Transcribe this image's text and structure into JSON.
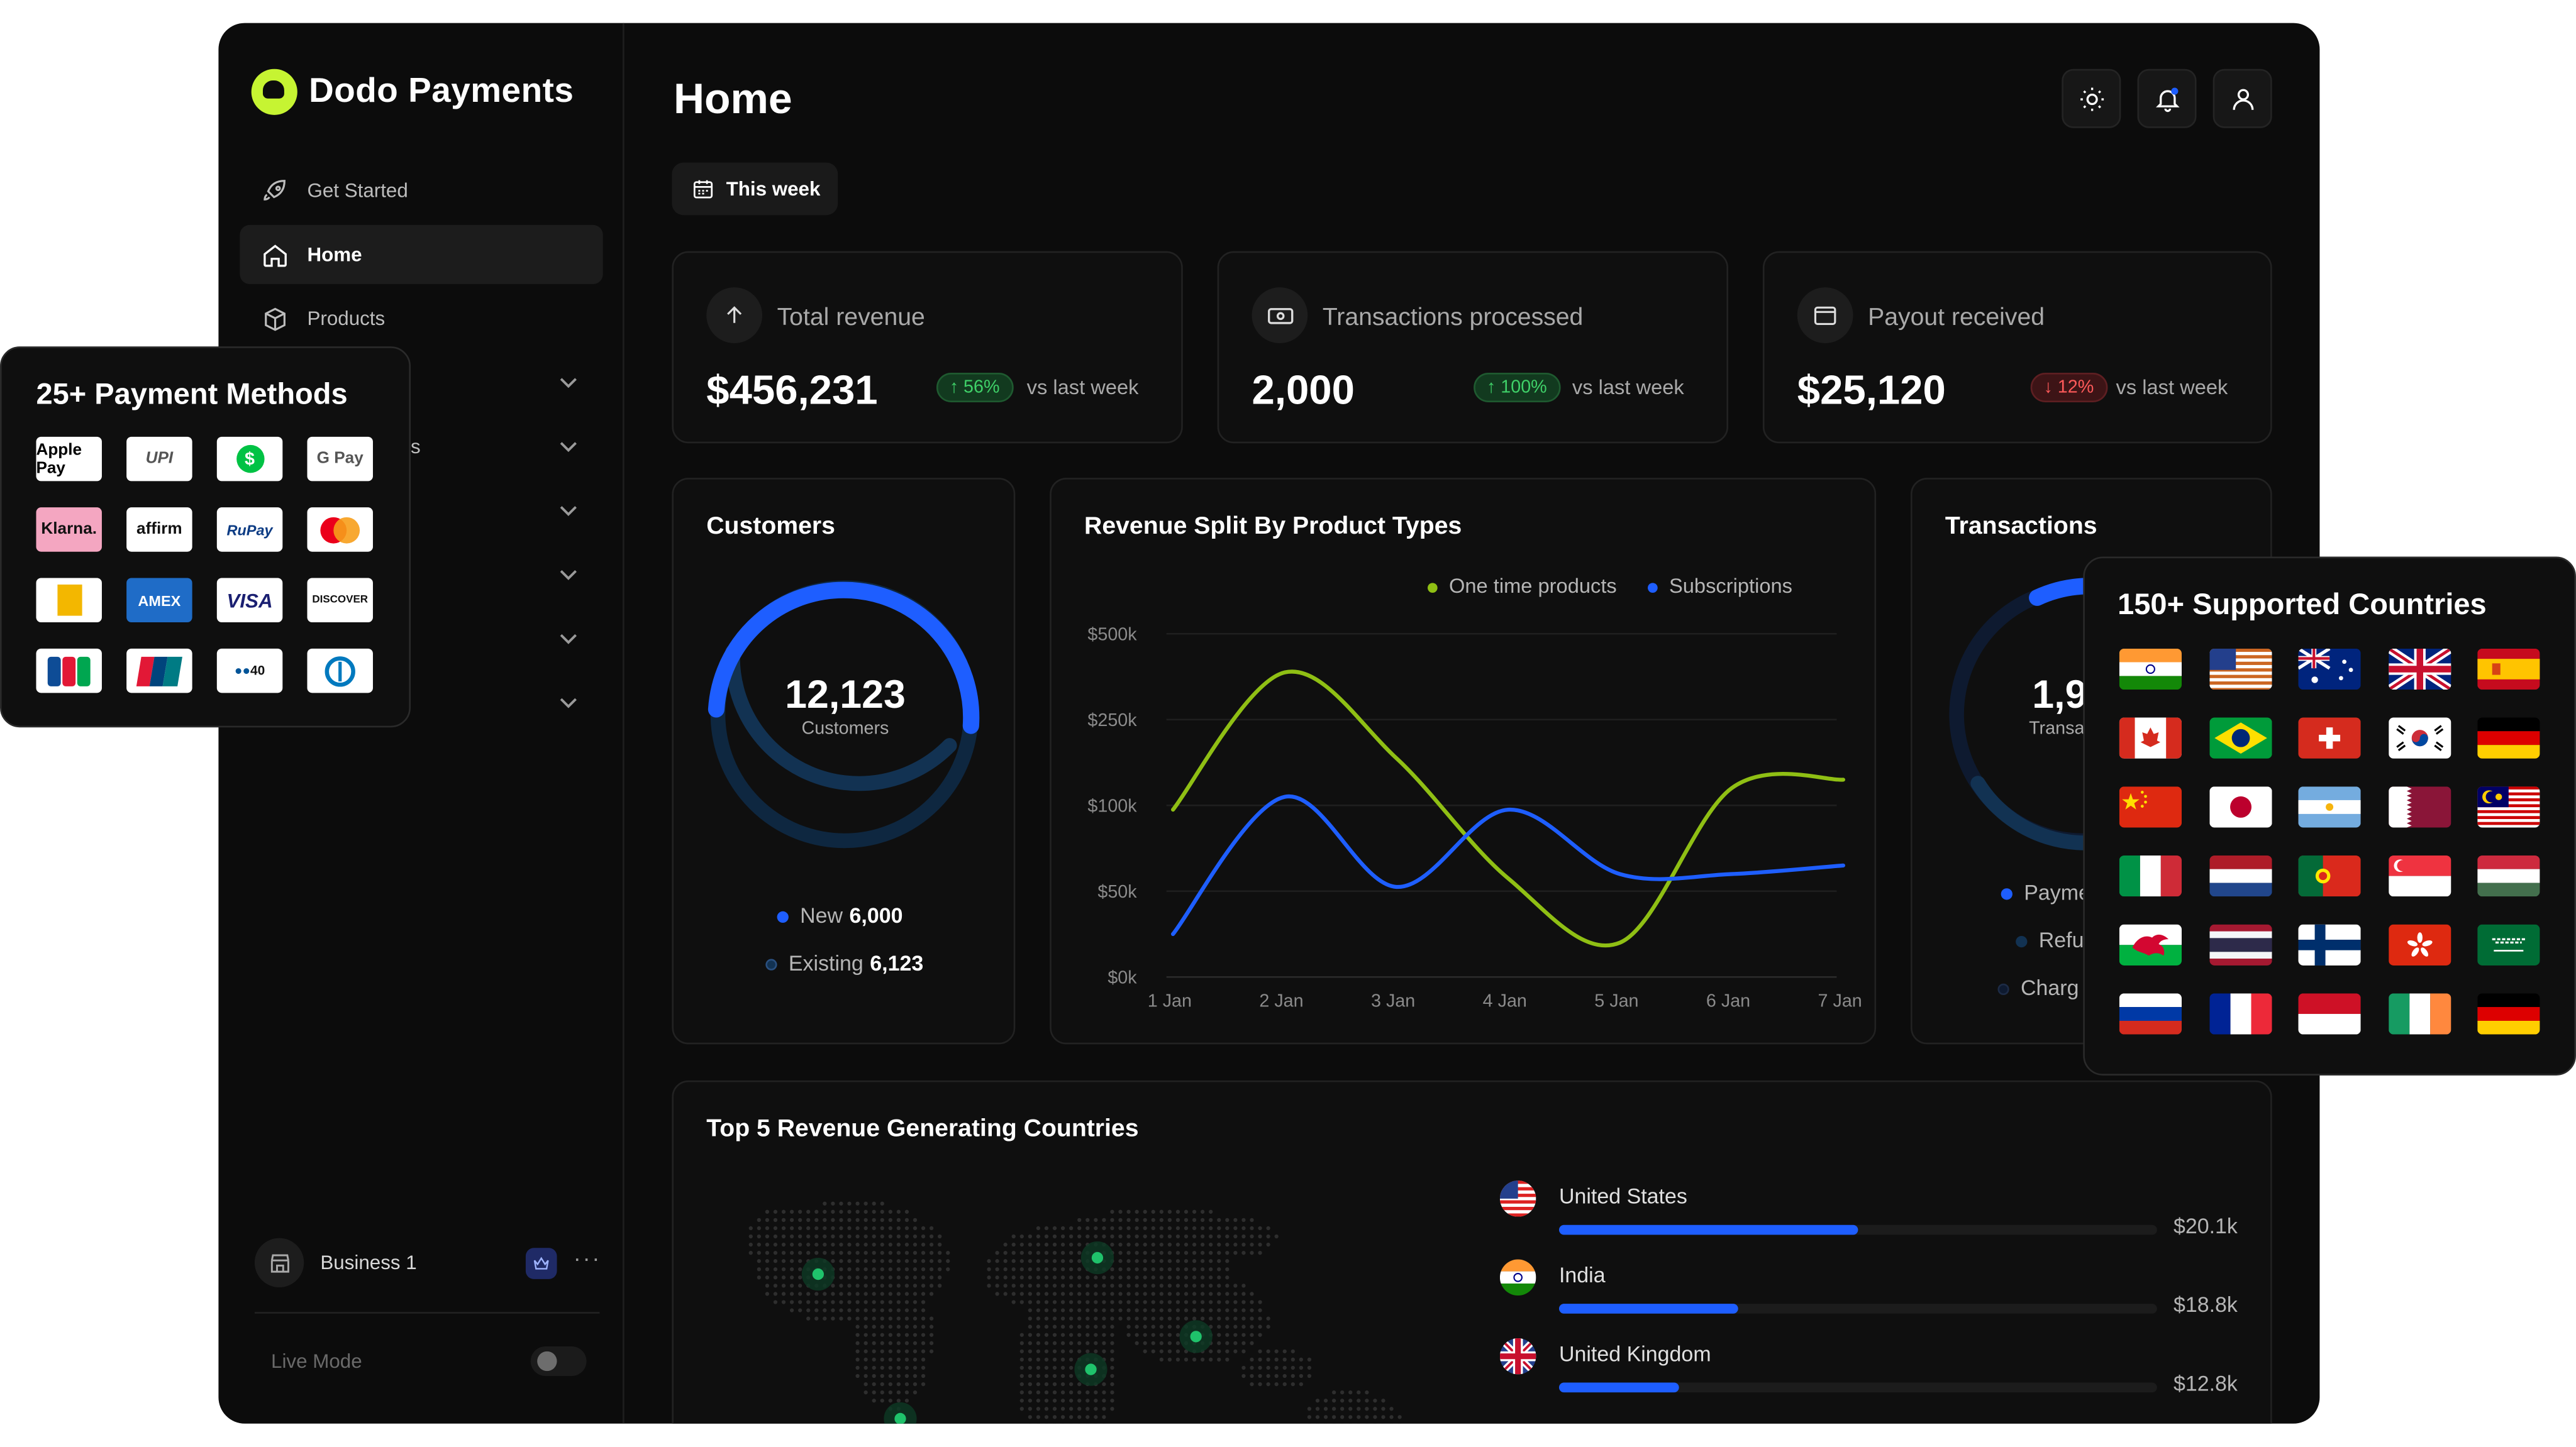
{
  "brand": {
    "name": "Dodo Payments"
  },
  "sidebar": {
    "items": [
      {
        "label": "Get Started",
        "icon": "rocket-icon"
      },
      {
        "label": "Home",
        "icon": "home-icon",
        "active": true
      },
      {
        "label": "Products",
        "icon": "box-icon"
      }
    ],
    "partial_label": "s",
    "business": {
      "name": "Business 1"
    },
    "live_mode_label": "Live Mode",
    "live_mode_on": false
  },
  "header": {
    "title": "Home",
    "date_filter": "This week"
  },
  "stats": [
    {
      "label": "Total revenue",
      "value": "$456,231",
      "change": "56%",
      "direction": "up",
      "vs": "vs last week",
      "icon": "upload-icon"
    },
    {
      "label": "Transactions processed",
      "value": "2,000",
      "change": "100%",
      "direction": "up",
      "vs": "vs last week",
      "icon": "cash-icon"
    },
    {
      "label": "Payout received",
      "value": "$25,120",
      "change": "12%",
      "direction": "down",
      "vs": "vs last week",
      "icon": "wallet-icon"
    }
  ],
  "customers": {
    "title": "Customers",
    "total": "12,123",
    "total_label": "Customers",
    "new_label": "New",
    "new_value": "6,000",
    "existing_label": "Existing",
    "existing_value": "6,123"
  },
  "chart_data": {
    "type": "line",
    "title": "Revenue Split By Product Types",
    "categories": [
      "1 Jan",
      "2 Jan",
      "3 Jan",
      "4 Jan",
      "5 Jan",
      "6 Jan",
      "7 Jan"
    ],
    "y_ticks": [
      "$0k",
      "$50k",
      "$100k",
      "$250k",
      "$500k"
    ],
    "series": [
      {
        "name": "One time products",
        "color": "#8fbf14",
        "values": [
          1.95,
          3.55,
          2.55,
          1.15,
          0.4,
          2.2,
          2.3
        ]
      },
      {
        "name": "Subscriptions",
        "color": "#1e5eff",
        "values": [
          0.5,
          2.1,
          1.05,
          1.95,
          1.2,
          1.2,
          1.3
        ]
      }
    ],
    "legend_position": "top-right",
    "grid": true
  },
  "transactions": {
    "title": "Transactions",
    "total_partial": "1,9",
    "total_label_partial": "Transa",
    "legend": [
      "Payme",
      "Refu",
      "Charg"
    ]
  },
  "countries": {
    "title": "Top 5 Revenue Generating Countries",
    "rows": [
      {
        "name": "United States",
        "value": "$20.1k",
        "fraction": 0.5,
        "flag": "us"
      },
      {
        "name": "India",
        "value": "$18.8k",
        "fraction": 0.3,
        "flag": "in"
      },
      {
        "name": "United Kingdom",
        "value": "$12.8k",
        "fraction": 0.2,
        "flag": "gb"
      }
    ]
  },
  "payment_methods": {
    "title": "25+ Payment Methods",
    "logos": [
      "Apple Pay",
      "UPI",
      "Cash App",
      "G Pay",
      "Klarna.",
      "affirm",
      "RuPay",
      "Mastercard",
      "Interac",
      "AMEX",
      "VISA",
      "DISCOVER",
      "JCB",
      "UnionPay",
      "Bancontact",
      "Diners Club"
    ]
  },
  "supported_countries": {
    "title": "150+ Supported Countries",
    "flags": [
      "india",
      "usa",
      "australia",
      "uk",
      "spain",
      "canada",
      "brazil",
      "switzerland",
      "south-korea",
      "germany",
      "china",
      "japan",
      "argentina",
      "qatar",
      "malaysia",
      "italy",
      "netherlands",
      "portugal",
      "singapore",
      "hungary",
      "wales",
      "thailand",
      "finland",
      "hong-kong",
      "saudi-arabia",
      "russia",
      "france",
      "indonesia",
      "ireland",
      "germany"
    ]
  }
}
